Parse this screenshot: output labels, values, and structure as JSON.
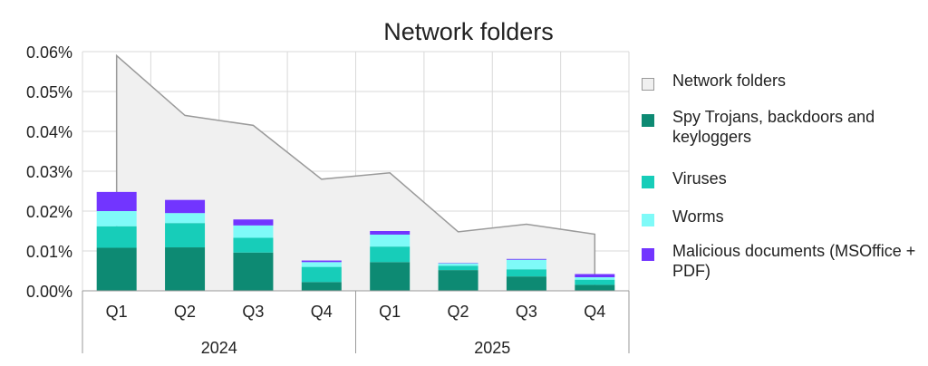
{
  "chart_data": {
    "type": "bar",
    "title": "Network folders",
    "years": [
      "2024",
      "2025"
    ],
    "categories": [
      "Q1",
      "Q2",
      "Q3",
      "Q4",
      "Q1",
      "Q2",
      "Q3",
      "Q4"
    ],
    "ylim": [
      0,
      0.06
    ],
    "y_ticks": [
      "0.00%",
      "0.01%",
      "0.02%",
      "0.03%",
      "0.04%",
      "0.05%",
      "0.06%"
    ],
    "grid": true,
    "legend_position": "right",
    "area_series": {
      "name": "Network folders",
      "color": "#f0f0f0",
      "line_color": "#9a9a9a",
      "values": [
        0.059,
        0.044,
        0.0415,
        0.028,
        0.0296,
        0.0148,
        0.0167,
        0.0142
      ]
    },
    "series": [
      {
        "name": "Spy Trojans, backdoors and keyloggers",
        "color": "#0d8a73",
        "values": [
          0.0108,
          0.0109,
          0.0096,
          0.0022,
          0.0072,
          0.0052,
          0.0036,
          0.0015
        ]
      },
      {
        "name": "Viruses",
        "color": "#17cdb9",
        "values": [
          0.0054,
          0.0061,
          0.0037,
          0.0038,
          0.0039,
          0.0011,
          0.0018,
          0.0013
        ]
      },
      {
        "name": "Worms",
        "color": "#7ffaf8",
        "values": [
          0.0038,
          0.0025,
          0.0031,
          0.0012,
          0.003,
          0.0006,
          0.0024,
          0.0006
        ]
      },
      {
        "name": "Malicious documents (MSOffice + PDF)",
        "color": "#7235ff",
        "values": [
          0.0048,
          0.0033,
          0.0015,
          0.0004,
          0.0009,
          0.0001,
          0.0002,
          0.0008
        ]
      }
    ]
  }
}
